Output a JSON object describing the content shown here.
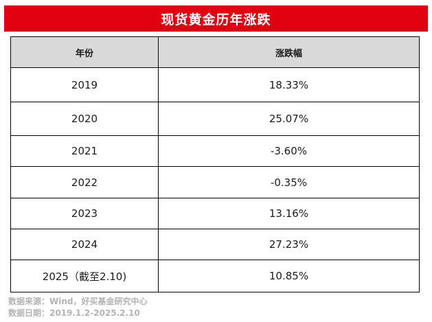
{
  "title": "现货黄金历年涨跌",
  "table": {
    "headers": [
      "年份",
      "涨跌幅"
    ],
    "rows": [
      {
        "year": "2019",
        "change": "18.33%"
      },
      {
        "year": "2020",
        "change": "25.07%"
      },
      {
        "year": "2021",
        "change": "-3.60%"
      },
      {
        "year": "2022",
        "change": "-0.35%"
      },
      {
        "year": "2023",
        "change": "13.16%"
      },
      {
        "year": "2024",
        "change": "27.23%"
      },
      {
        "year": "2025（截至2.10)",
        "change": "10.85%"
      }
    ]
  },
  "footer": {
    "source": "数据来源：Wind，好买基金研究中心",
    "date_range": "数据日期：2019.1.2-2025.2.10"
  },
  "colors": {
    "title_bg": "#e0000f",
    "header_bg": "#d9d9d9",
    "footer_text": "#b3b3b3"
  }
}
